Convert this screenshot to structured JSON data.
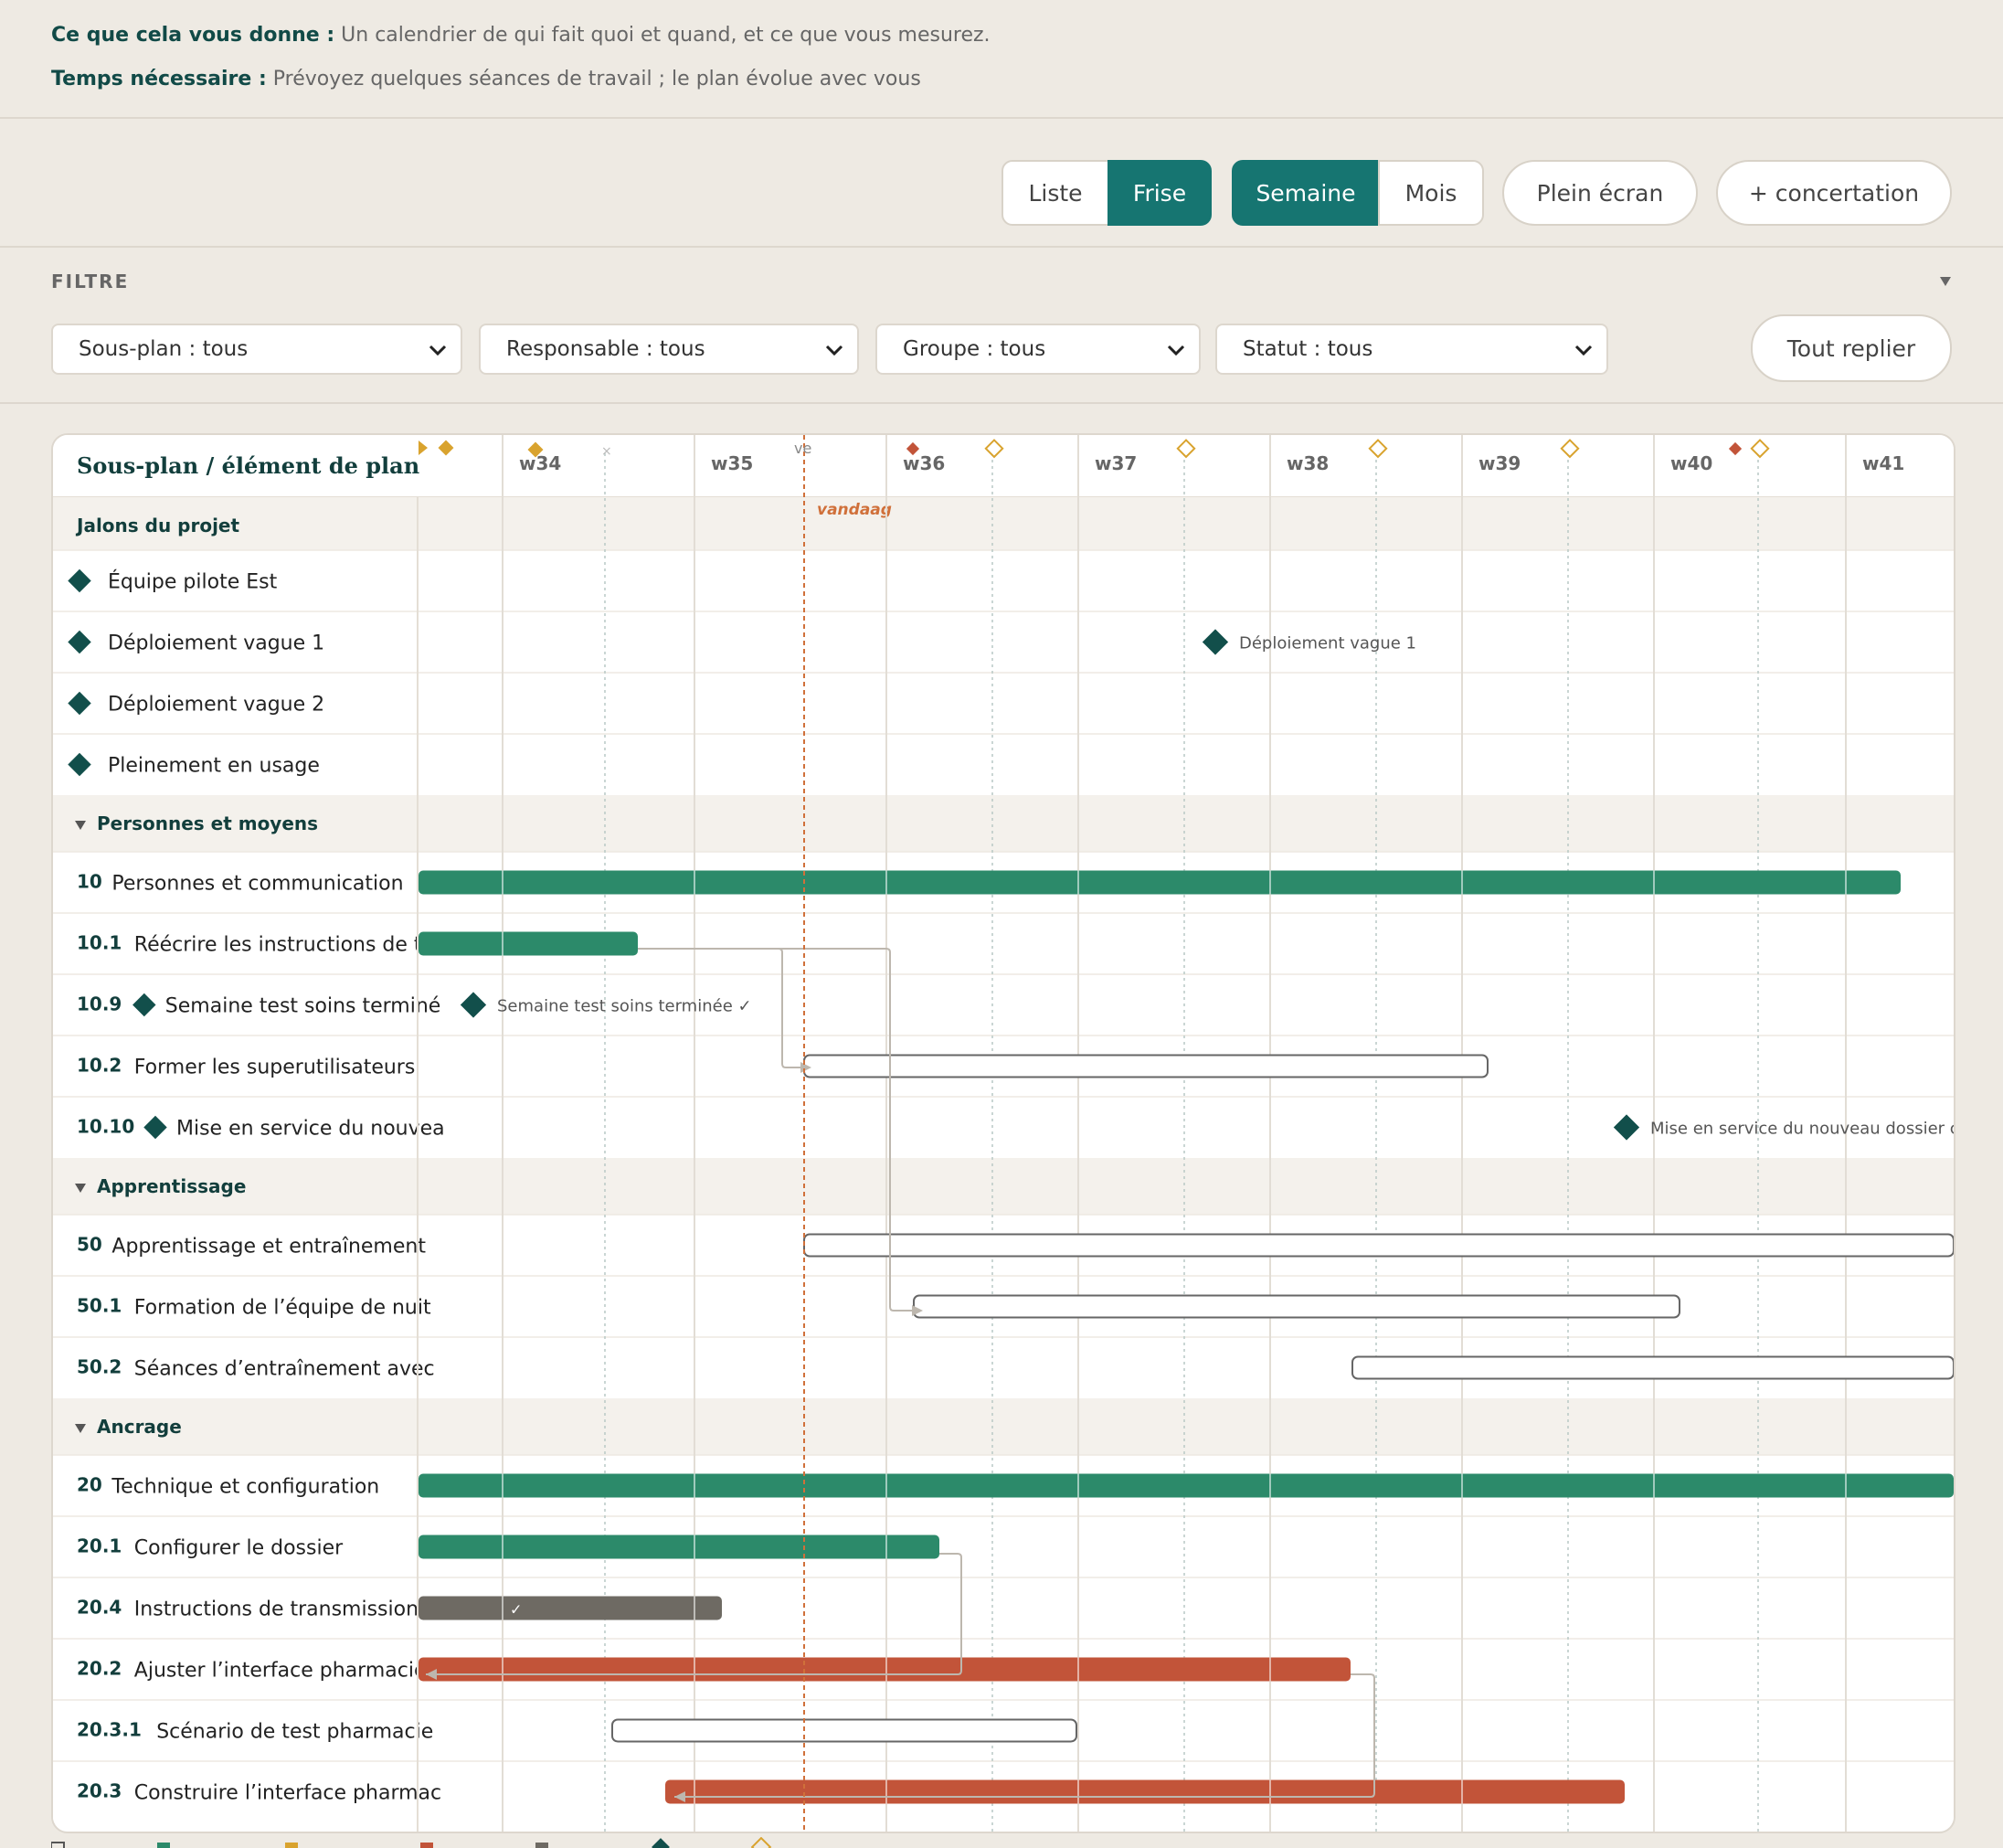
{
  "intro": {
    "line1_label": "Ce que cela vous donne :",
    "line1_text": " Un calendrier de qui fait quoi et quand, et ce que vous mesurez.",
    "line2_label": "Temps nécessaire :",
    "line2_text": " Prévoyez quelques séances de travail ; le plan évolue avec vous"
  },
  "toolbar": {
    "view_list": "Liste",
    "view_frise": "Frise",
    "scale_week": "Semaine",
    "scale_month": "Mois",
    "fullscreen": "Plein écran",
    "concertation": "+ concertation"
  },
  "filters": {
    "label": "FILTRE",
    "subplan": "Sous-plan : tous",
    "owner": "Responsable : tous",
    "group": "Groupe : tous",
    "status": "Statut : tous",
    "collapse_all": "Tout replier"
  },
  "gantt": {
    "header": "Sous-plan / élément de plan",
    "weeks": [
      "w34",
      "w35",
      "w36",
      "w37",
      "w38",
      "w39",
      "w40",
      "w41"
    ],
    "today_label": "vandaag",
    "day_marker": "ve",
    "colors": {
      "green": "#2C8A6A",
      "red": "#C25439",
      "gray": "#6E6A63",
      "milestone": "#124F4B",
      "gold": "#D9A32E",
      "today": "#D0703A"
    },
    "milestones_section": {
      "title": "Jalons du projet",
      "items": [
        {
          "name": "Équipe pilote Est",
          "bar_label": ""
        },
        {
          "name": "Déploiement vague 1",
          "bar_label": "Déploiement vague 1"
        },
        {
          "name": "Déploiement vague 2",
          "bar_label": ""
        },
        {
          "name": "Pleinement en usage",
          "bar_label": ""
        }
      ]
    },
    "groups": [
      {
        "title": "Personnes et moyens",
        "rows": [
          {
            "num": "10",
            "name": "Personnes et communication",
            "type": "bar",
            "style": "green"
          },
          {
            "num": "10.1",
            "name": "Réécrire les instructions de tra",
            "type": "bar",
            "style": "green"
          },
          {
            "num": "10.9",
            "name": "Semaine test soins terminé",
            "type": "milestone",
            "bar_label": "Semaine test soins terminée ✓"
          },
          {
            "num": "10.2",
            "name": "Former les superutilisateurs",
            "type": "bar",
            "style": "outline"
          },
          {
            "num": "10.10",
            "name": "Mise en service du nouvea",
            "type": "milestone",
            "bar_label": "Mise en service du nouveau dossier c"
          }
        ]
      },
      {
        "title": "Apprentissage",
        "rows": [
          {
            "num": "50",
            "name": "Apprentissage et entraînement",
            "type": "bar",
            "style": "outline"
          },
          {
            "num": "50.1",
            "name": "Formation de l’équipe de nuit",
            "type": "bar",
            "style": "outline"
          },
          {
            "num": "50.2",
            "name": "Séances d’entraînement avec",
            "type": "bar",
            "style": "outline"
          }
        ]
      },
      {
        "title": "Ancrage",
        "rows": [
          {
            "num": "20",
            "name": "Technique et configuration",
            "type": "bar",
            "style": "green"
          },
          {
            "num": "20.1",
            "name": "Configurer le dossier",
            "type": "bar",
            "style": "green"
          },
          {
            "num": "20.4",
            "name": "Instructions de transmission",
            "type": "bar",
            "style": "gray",
            "bar_label": "✓"
          },
          {
            "num": "20.2",
            "name": "Ajuster l’interface pharmacie",
            "type": "bar",
            "style": "red"
          },
          {
            "num": "20.3.1",
            "name": "Scénario de test pharmacie",
            "type": "bar",
            "style": "outline"
          },
          {
            "num": "20.3",
            "name": "Construire l’interface pharmac",
            "type": "bar",
            "style": "red"
          }
        ]
      }
    ]
  }
}
